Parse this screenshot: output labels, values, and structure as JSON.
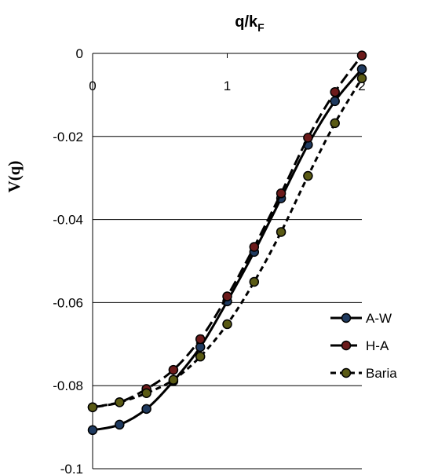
{
  "chart_data": {
    "type": "line",
    "title": "",
    "xlabel": {
      "main": "q/k",
      "sub": "F"
    },
    "ylabel": "V(q)",
    "x_axis_position": "top",
    "xlim": [
      0,
      2
    ],
    "ylim": [
      -0.1,
      0
    ],
    "x_ticks": [
      "0",
      "1",
      "2"
    ],
    "y_ticks": [
      "0",
      "-0.02",
      "-0.04",
      "-0.06",
      "-0.08",
      "-0.1"
    ],
    "grid": "horizontal",
    "legend_position": "right",
    "x": [
      0,
      0.2,
      0.4,
      0.6,
      0.8,
      1.0,
      1.2,
      1.4,
      1.6,
      1.8,
      2.0
    ],
    "series": [
      {
        "name": "A-W",
        "line_style": "solid",
        "marker_color": "#1f3a5f",
        "values": [
          -0.0907,
          -0.0894,
          -0.0856,
          -0.0789,
          -0.0707,
          -0.0597,
          -0.0478,
          -0.0349,
          -0.022,
          -0.0115,
          -0.0038
        ]
      },
      {
        "name": "H-A",
        "line_style": "dashed",
        "marker_color": "#6b1a1a",
        "values": [
          -0.0852,
          -0.084,
          -0.0808,
          -0.0762,
          -0.0688,
          -0.0585,
          -0.0466,
          -0.0337,
          -0.0203,
          -0.0093,
          -0.0005
        ]
      },
      {
        "name": "Baria",
        "line_style": "dotted",
        "marker_color": "#5a5a14",
        "values": [
          -0.0852,
          -0.084,
          -0.0818,
          -0.0786,
          -0.073,
          -0.0652,
          -0.055,
          -0.043,
          -0.0295,
          -0.0168,
          -0.006
        ]
      }
    ]
  }
}
